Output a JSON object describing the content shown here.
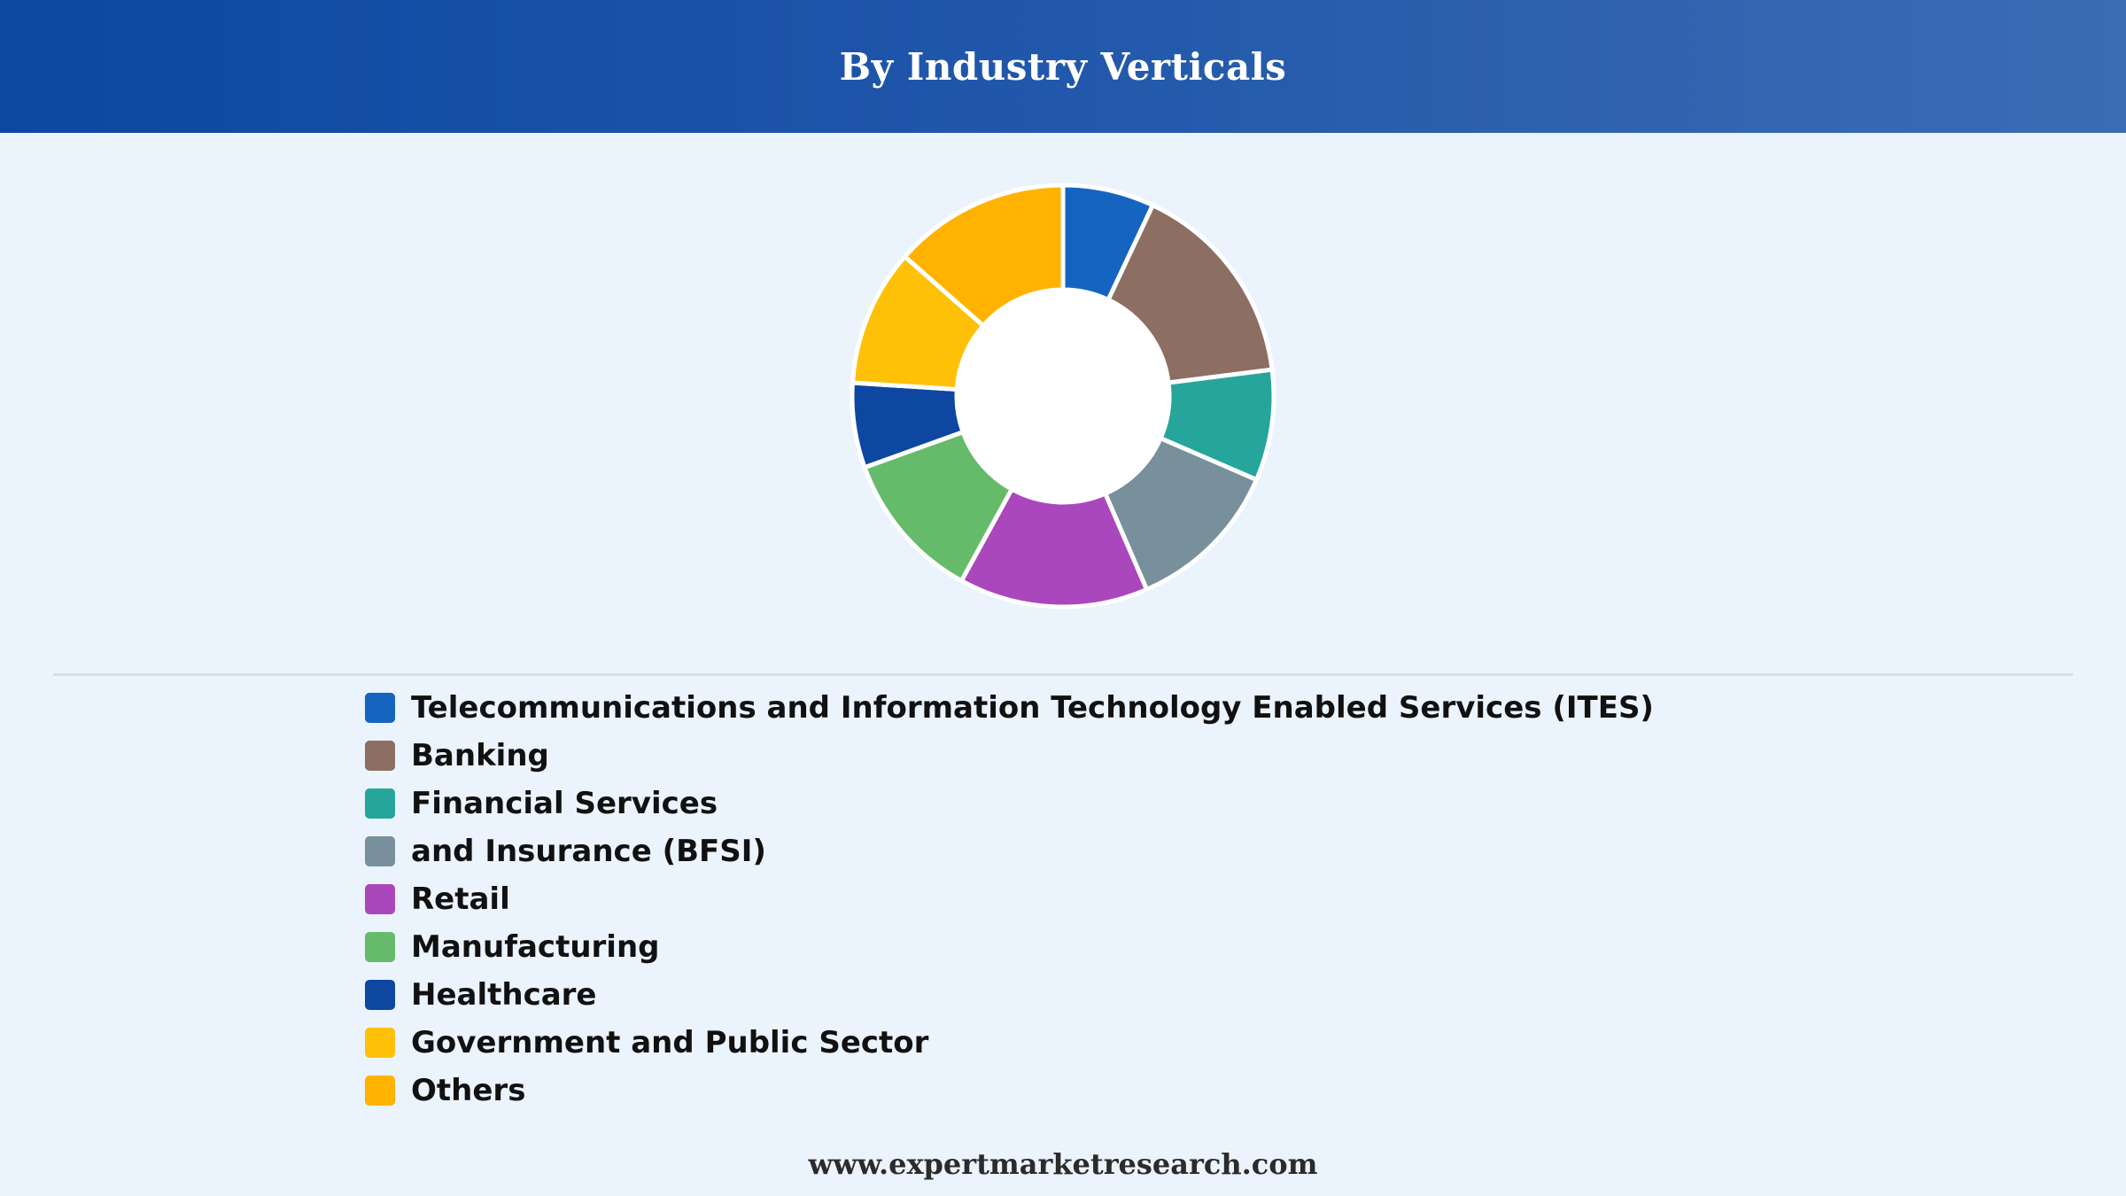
{
  "header": {
    "title": "By Industry Verticals"
  },
  "chart_data": {
    "type": "pie",
    "donut": true,
    "legend_position": "bottom",
    "categories": [
      "Telecommunications and Information Technology Enabled Services (ITES)",
      "Banking",
      "Financial Services",
      "and Insurance (BFSI)",
      "Retail",
      "Manufacturing",
      "Healthcare",
      "Government and Public Sector",
      "Others"
    ],
    "values": [
      7,
      16,
      8.5,
      12,
      14.5,
      11.5,
      6.5,
      10.5,
      13.5
    ],
    "colors": [
      "#1565c0",
      "#8d6e63",
      "#26a69a",
      "#78909c",
      "#ab47bc",
      "#66bb6a",
      "#0d47a1",
      "#ffc107",
      "#ffb300"
    ]
  },
  "footer": {
    "text": "www.expertmarketresearch.com"
  }
}
